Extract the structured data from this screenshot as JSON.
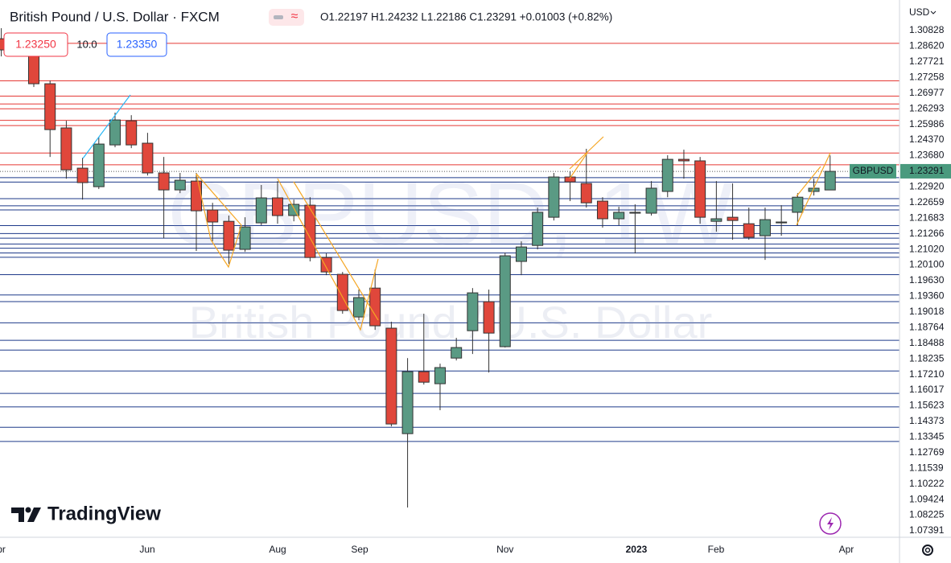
{
  "header": {
    "symbol_title": "British Pound / U.S. Dollar · FXCM",
    "ohlc": "O1.22197 H1.24232 L1.22186 C1.23291 +0.01003 (+0.82%)",
    "sell_price": "1.23250",
    "spread": "10.0",
    "buy_price": "1.23350",
    "currency": "USD"
  },
  "watermark": {
    "main": "GBPUSD, 1W",
    "sub": "British Pound / U.S. Dollar"
  },
  "brand": "TradingView",
  "chart_data": {
    "type": "candlestick",
    "symbol": "GBPUSD",
    "up_color": "#5a9a84",
    "down_color": "#e0473b",
    "wick_color": "#333333",
    "level_colors": {
      "above": "#e53935",
      "below": "#1e3a8a"
    },
    "last_color": "#4a9a7e",
    "xlim": [
      -0.08,
      55.27
    ],
    "xticks": [
      {
        "value": -0.2,
        "label": "Apr"
      },
      {
        "value": 8.98,
        "label": "Jun"
      },
      {
        "value": 17.0,
        "label": "Aug"
      },
      {
        "value": 22.05,
        "label": "Sep"
      },
      {
        "value": 31.0,
        "label": "Nov"
      },
      {
        "value": 39.08,
        "label": "2023"
      },
      {
        "value": 43.98,
        "label": "Feb"
      },
      {
        "value": 52.0,
        "label": "Apr"
      }
    ],
    "ylim": [
      1.0175,
      1.3338
    ],
    "yticks": [
      1.30828,
      {
        "value": 1.2862,
        "label": "1.28620"
      },
      1.27721,
      1.27258,
      1.26977,
      1.26293,
      1.25986,
      {
        "value": 1.2437,
        "label": "1.24370"
      },
      {
        "value": 1.2368,
        "label": "1.23680"
      },
      {
        "value": 1.2292,
        "label": "1.22920"
      },
      1.22659,
      1.21683,
      1.21266,
      {
        "value": 1.2102,
        "label": "1.21020"
      },
      {
        "value": 1.201,
        "label": "1.20100"
      },
      {
        "value": 1.1963,
        "label": "1.19630"
      },
      {
        "value": 1.1936,
        "label": "1.19360"
      },
      1.19018,
      1.18764,
      1.18488,
      1.18235,
      {
        "value": 1.1721,
        "label": "1.17210"
      },
      1.16017,
      1.15623,
      1.14373,
      1.13345,
      1.12769,
      1.11539,
      1.10222,
      1.09424,
      1.08225,
      1.07391
    ],
    "open": [
      1.311,
      null,
      1.3016,
      1.2845,
      1.2585,
      1.2348,
      1.2239,
      1.2485,
      1.2627,
      1.2495,
      1.232,
      1.222,
      1.2272,
      1.2102,
      1.2035,
      1.187,
      1.2026,
      1.2173,
      1.2069,
      1.213,
      1.1822,
      1.1723,
      1.1472,
      1.1642,
      1.1406,
      1.0785,
      1.115,
      1.1079,
      1.123,
      1.1391,
      1.1562,
      1.1297,
      1.1799,
      1.1893,
      1.2059,
      1.2296,
      1.2258,
      1.2154,
      1.205,
      1.2083,
      1.2083,
      1.2211,
      1.24,
      1.2391,
      1.2035,
      1.2059,
      1.2021,
      1.195,
      1.2026,
      1.2088,
      1.2211,
      1.22197
    ],
    "high": [
      1.3172,
      null,
      1.3053,
      1.2864,
      1.2627,
      1.2409,
      1.2533,
      1.2675,
      1.266,
      1.2556,
      1.2414,
      1.232,
      1.232,
      1.2144,
      1.2069,
      1.2059,
      1.2249,
      1.2272,
      1.2163,
      1.2177,
      1.1846,
      1.1737,
      1.1633,
      1.1751,
      1.1444,
      1.123,
      1.1491,
      1.1197,
      1.1349,
      1.1642,
      1.1633,
      1.1851,
      1.1917,
      1.2116,
      1.232,
      1.2329,
      1.2462,
      1.2177,
      1.2121,
      1.2135,
      1.2272,
      1.2424,
      1.2457,
      1.2414,
      1.2272,
      1.2258,
      1.2116,
      1.2116,
      1.213,
      1.2201,
      1.2286,
      1.24232
    ],
    "low": [
      1.3006,
      null,
      1.2826,
      1.2414,
      1.2286,
      1.2163,
      1.2225,
      1.2471,
      1.2466,
      1.2305,
      1.1936,
      1.2201,
      1.186,
      1.1917,
      1.1784,
      1.1855,
      1.2012,
      1.2021,
      1.2035,
      1.1799,
      1.1718,
      1.1491,
      1.1453,
      1.1396,
      1.0828,
      1.035,
      1.1074,
      1.0923,
      1.1216,
      1.1254,
      1.1145,
      1.1292,
      1.1718,
      1.187,
      1.204,
      1.2154,
      1.2116,
      1.1998,
      1.2012,
      1.1846,
      1.2069,
      1.2177,
      1.2286,
      1.2021,
      1.1974,
      1.1927,
      1.1927,
      1.1808,
      1.195,
      1.2012,
      1.2187,
      1.22186
    ],
    "close": [
      1.3044,
      null,
      1.2845,
      1.2575,
      1.2338,
      1.2263,
      1.249,
      1.2632,
      1.2485,
      1.232,
      1.222,
      1.2277,
      1.2097,
      1.2031,
      1.1865,
      1.2002,
      1.2173,
      1.2069,
      1.2135,
      1.1822,
      1.1737,
      1.151,
      1.1586,
      1.142,
      1.0842,
      1.115,
      1.1088,
      1.1174,
      1.1292,
      1.1614,
      1.1377,
      1.1832,
      1.1884,
      1.2088,
      1.2296,
      1.2267,
      1.2144,
      1.205,
      1.2088,
      1.2088,
      1.223,
      1.24,
      1.2391,
      1.2059,
      1.205,
      1.204,
      1.1941,
      1.2045,
      1.2031,
      1.2177,
      1.223,
      1.23291
    ]
  }
}
